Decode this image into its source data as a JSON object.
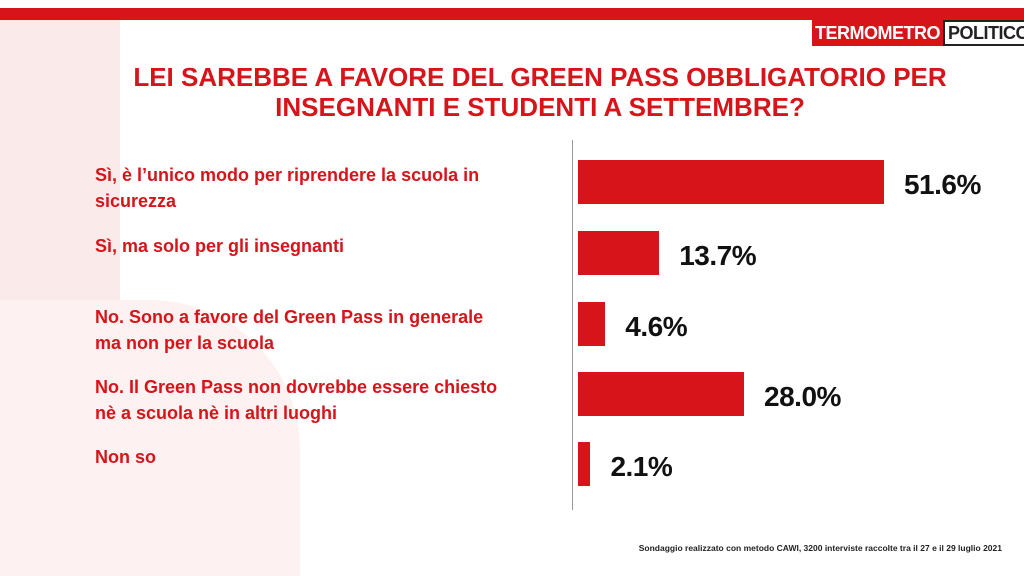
{
  "chart_data": {
    "type": "bar",
    "title": "LEI SAREBBE A FAVORE DEL GREEN PASS OBBLIGATORIO PER INSEGNANTI E STUDENTI A SETTEMBRE?",
    "categories": [
      "Sì, è l’unico modo per riprendere la scuola in sicurezza",
      "Sì, ma solo per gli insegnanti",
      "No. Sono a favore del Green Pass in generale ma non per la scuola",
      "No. Il Green Pass non dovrebbe essere chiesto nè a scuola nè in altri luoghi",
      "Non so"
    ],
    "values": [
      51.6,
      13.7,
      4.6,
      28.0,
      2.1
    ],
    "value_labels": [
      "51.6%",
      "13.7%",
      "4.6%",
      "28.0%",
      "2.1%"
    ],
    "color": "#d7141a",
    "footnote": "Sondaggio realizzato con metodo CAWI, 3200 interviste raccolte tra il 27 e il 29  luglio 2021",
    "logo": [
      "TERMOMETRO",
      "POLITICO"
    ]
  }
}
